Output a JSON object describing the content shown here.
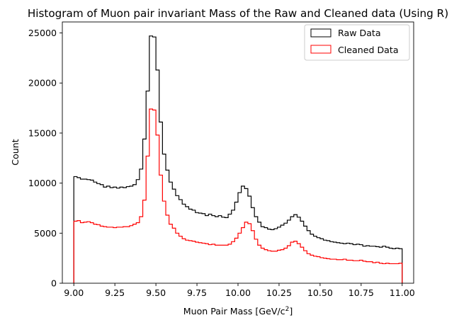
{
  "chart_data": {
    "type": "histogram",
    "title": "Histogram of Muon pair invariant Mass of the Raw and Cleaned data (Using R)",
    "xlabel_main": "Muon Pair Mass [GeV/c",
    "xlabel_sup": "2",
    "xlabel_close": "]",
    "ylabel": "Count",
    "xlim": [
      8.93,
      11.07
    ],
    "ylim": [
      0,
      26100
    ],
    "xticks": [
      9.0,
      9.25,
      9.5,
      9.75,
      10.0,
      10.25,
      10.5,
      10.75,
      11.0
    ],
    "xtick_labels": [
      "9.00",
      "9.25",
      "9.50",
      "9.75",
      "10.00",
      "10.25",
      "10.50",
      "10.75",
      "11.00"
    ],
    "yticks": [
      0,
      5000,
      10000,
      15000,
      20000,
      25000
    ],
    "ytick_labels": [
      "0",
      "5000",
      "10000",
      "15000",
      "20000",
      "25000"
    ],
    "grid": false,
    "legend_position": "top-right",
    "bin_start": 9.0,
    "bin_width": 0.02,
    "series": [
      {
        "name": "Raw Data",
        "color": "#000000",
        "values": [
          10650,
          10550,
          10400,
          10400,
          10350,
          10300,
          10100,
          9950,
          9850,
          9600,
          9700,
          9550,
          9600,
          9500,
          9600,
          9550,
          9650,
          9700,
          9850,
          10350,
          11400,
          14400,
          19200,
          24700,
          24600,
          21300,
          16100,
          12900,
          11300,
          10100,
          9400,
          8750,
          8350,
          7900,
          7650,
          7400,
          7300,
          7050,
          7000,
          6950,
          6750,
          6900,
          6750,
          6650,
          6750,
          6600,
          6550,
          6900,
          7300,
          8100,
          9050,
          9700,
          9450,
          8700,
          7550,
          6650,
          6100,
          5650,
          5550,
          5400,
          5350,
          5450,
          5600,
          5800,
          6000,
          6300,
          6650,
          6850,
          6600,
          6200,
          5700,
          5250,
          4900,
          4700,
          4550,
          4450,
          4300,
          4250,
          4150,
          4100,
          4050,
          4000,
          3950,
          4000,
          3950,
          3850,
          3900,
          3850,
          3700,
          3750,
          3700,
          3700,
          3650,
          3600,
          3700,
          3600,
          3500,
          3450,
          3500,
          3450
        ]
      },
      {
        "name": "Cleaned Data",
        "color": "#ff0000",
        "values": [
          6200,
          6250,
          6050,
          6100,
          6150,
          6050,
          5900,
          5850,
          5700,
          5650,
          5600,
          5600,
          5550,
          5600,
          5600,
          5650,
          5650,
          5750,
          5900,
          6050,
          6650,
          8300,
          12700,
          17400,
          17300,
          14800,
          10800,
          8200,
          6800,
          5900,
          5500,
          5000,
          4700,
          4450,
          4300,
          4250,
          4200,
          4100,
          4050,
          4000,
          3950,
          3850,
          3900,
          3800,
          3800,
          3800,
          3800,
          3900,
          4150,
          4500,
          5000,
          5550,
          6100,
          5950,
          5250,
          4400,
          3800,
          3500,
          3350,
          3250,
          3200,
          3200,
          3300,
          3350,
          3500,
          3750,
          4100,
          4200,
          3950,
          3600,
          3250,
          2950,
          2800,
          2700,
          2650,
          2550,
          2500,
          2450,
          2400,
          2400,
          2350,
          2350,
          2400,
          2300,
          2300,
          2250,
          2250,
          2300,
          2200,
          2150,
          2150,
          2050,
          2100,
          2000,
          1950,
          2000,
          1950,
          1950,
          1950,
          2000
        ]
      }
    ]
  }
}
